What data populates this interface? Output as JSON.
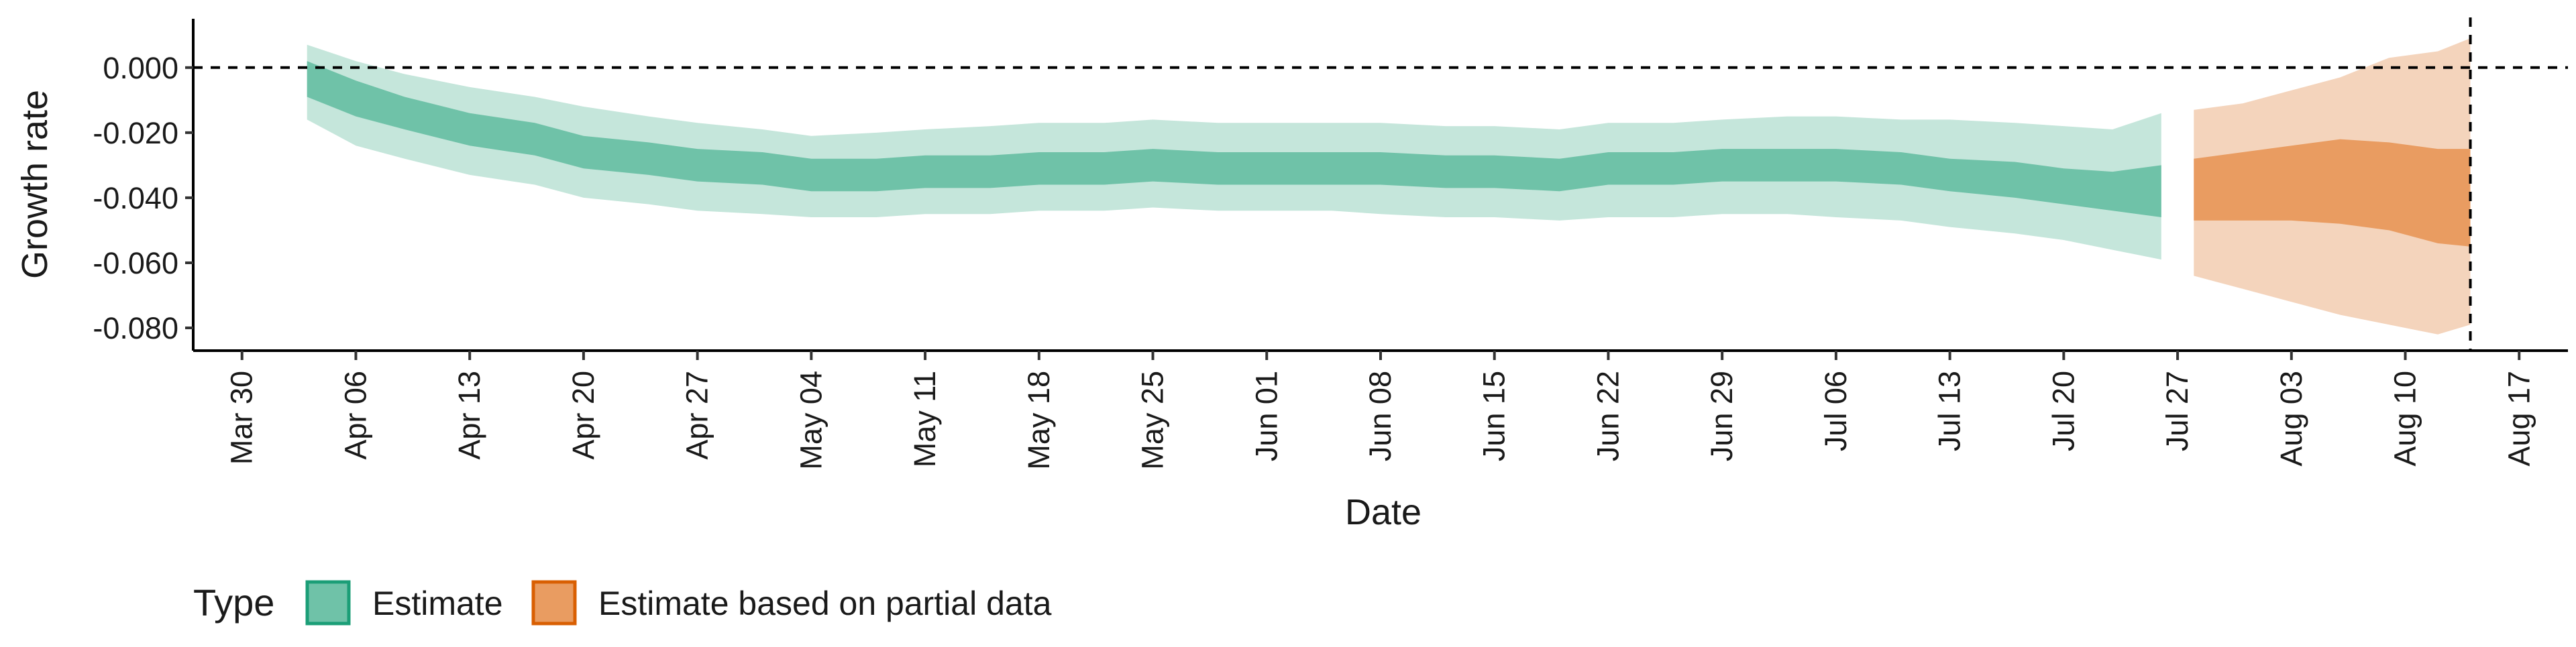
{
  "chart_data": {
    "type": "area",
    "xlabel": "Date",
    "ylabel": "Growth rate",
    "ylim": [
      -0.087,
      0.015
    ],
    "xlim": [
      "2020-03-27",
      "2020-08-20"
    ],
    "x_ticks": [
      "2020-03-30",
      "2020-04-06",
      "2020-04-13",
      "2020-04-20",
      "2020-04-27",
      "2020-05-04",
      "2020-05-11",
      "2020-05-18",
      "2020-05-25",
      "2020-06-01",
      "2020-06-08",
      "2020-06-15",
      "2020-06-22",
      "2020-06-29",
      "2020-07-06",
      "2020-07-13",
      "2020-07-20",
      "2020-07-27",
      "2020-08-03",
      "2020-08-10",
      "2020-08-17"
    ],
    "x_tick_labels": [
      "Mar 30",
      "Apr 06",
      "Apr 13",
      "Apr 20",
      "Apr 27",
      "May 04",
      "May 11",
      "May 18",
      "May 25",
      "Jun 01",
      "Jun 08",
      "Jun 15",
      "Jun 22",
      "Jun 29",
      "Jul 06",
      "Jul 13",
      "Jul 20",
      "Jul 27",
      "Aug 03",
      "Aug 10",
      "Aug 17"
    ],
    "y_ticks": [
      0.0,
      -0.02,
      -0.04,
      -0.06,
      -0.08
    ],
    "y_tick_labels": [
      "0.000",
      "-0.020",
      "-0.040",
      "-0.060",
      "-0.080"
    ],
    "reference_lines": {
      "horizontal_y": 0.0,
      "vertical_x": "2020-08-14",
      "style": "dashed"
    },
    "grid": false,
    "legend": {
      "position": "bottom-left",
      "title": "Type",
      "entries": [
        "Estimate",
        "Estimate based on partial data"
      ]
    },
    "series": [
      {
        "name": "Estimate",
        "color": "#1b9e77",
        "fill": "#6fc2a8",
        "fill_light": "#c5e6db",
        "points": [
          {
            "x": "2020-04-03",
            "median": -0.003,
            "lower50": -0.009,
            "upper50": 0.002,
            "lower90": -0.016,
            "upper90": 0.007
          },
          {
            "x": "2020-04-06",
            "median": -0.009,
            "lower50": -0.015,
            "upper50": -0.004,
            "lower90": -0.024,
            "upper90": 0.002
          },
          {
            "x": "2020-04-09",
            "median": -0.014,
            "lower50": -0.019,
            "upper50": -0.009,
            "lower90": -0.028,
            "upper90": -0.002
          },
          {
            "x": "2020-04-13",
            "median": -0.019,
            "lower50": -0.024,
            "upper50": -0.014,
            "lower90": -0.033,
            "upper90": -0.006
          },
          {
            "x": "2020-04-17",
            "median": -0.022,
            "lower50": -0.027,
            "upper50": -0.017,
            "lower90": -0.036,
            "upper90": -0.009
          },
          {
            "x": "2020-04-20",
            "median": -0.026,
            "lower50": -0.031,
            "upper50": -0.021,
            "lower90": -0.04,
            "upper90": -0.012
          },
          {
            "x": "2020-04-24",
            "median": -0.028,
            "lower50": -0.033,
            "upper50": -0.023,
            "lower90": -0.042,
            "upper90": -0.015
          },
          {
            "x": "2020-04-27",
            "median": -0.03,
            "lower50": -0.035,
            "upper50": -0.025,
            "lower90": -0.044,
            "upper90": -0.017
          },
          {
            "x": "2020-05-01",
            "median": -0.031,
            "lower50": -0.036,
            "upper50": -0.026,
            "lower90": -0.045,
            "upper90": -0.019
          },
          {
            "x": "2020-05-04",
            "median": -0.033,
            "lower50": -0.038,
            "upper50": -0.028,
            "lower90": -0.046,
            "upper90": -0.021
          },
          {
            "x": "2020-05-08",
            "median": -0.033,
            "lower50": -0.038,
            "upper50": -0.028,
            "lower90": -0.046,
            "upper90": -0.02
          },
          {
            "x": "2020-05-11",
            "median": -0.032,
            "lower50": -0.037,
            "upper50": -0.027,
            "lower90": -0.045,
            "upper90": -0.019
          },
          {
            "x": "2020-05-15",
            "median": -0.032,
            "lower50": -0.037,
            "upper50": -0.027,
            "lower90": -0.045,
            "upper90": -0.018
          },
          {
            "x": "2020-05-18",
            "median": -0.031,
            "lower50": -0.036,
            "upper50": -0.026,
            "lower90": -0.044,
            "upper90": -0.017
          },
          {
            "x": "2020-05-22",
            "median": -0.031,
            "lower50": -0.036,
            "upper50": -0.026,
            "lower90": -0.044,
            "upper90": -0.017
          },
          {
            "x": "2020-05-25",
            "median": -0.03,
            "lower50": -0.035,
            "upper50": -0.025,
            "lower90": -0.043,
            "upper90": -0.016
          },
          {
            "x": "2020-05-29",
            "median": -0.031,
            "lower50": -0.036,
            "upper50": -0.026,
            "lower90": -0.044,
            "upper90": -0.017
          },
          {
            "x": "2020-06-01",
            "median": -0.031,
            "lower50": -0.036,
            "upper50": -0.026,
            "lower90": -0.044,
            "upper90": -0.017
          },
          {
            "x": "2020-06-05",
            "median": -0.031,
            "lower50": -0.036,
            "upper50": -0.026,
            "lower90": -0.044,
            "upper90": -0.017
          },
          {
            "x": "2020-06-08",
            "median": -0.031,
            "lower50": -0.036,
            "upper50": -0.026,
            "lower90": -0.045,
            "upper90": -0.017
          },
          {
            "x": "2020-06-12",
            "median": -0.032,
            "lower50": -0.037,
            "upper50": -0.027,
            "lower90": -0.046,
            "upper90": -0.018
          },
          {
            "x": "2020-06-15",
            "median": -0.032,
            "lower50": -0.037,
            "upper50": -0.027,
            "lower90": -0.046,
            "upper90": -0.018
          },
          {
            "x": "2020-06-19",
            "median": -0.033,
            "lower50": -0.038,
            "upper50": -0.028,
            "lower90": -0.047,
            "upper90": -0.019
          },
          {
            "x": "2020-06-22",
            "median": -0.031,
            "lower50": -0.036,
            "upper50": -0.026,
            "lower90": -0.046,
            "upper90": -0.017
          },
          {
            "x": "2020-06-26",
            "median": -0.031,
            "lower50": -0.036,
            "upper50": -0.026,
            "lower90": -0.046,
            "upper90": -0.017
          },
          {
            "x": "2020-06-29",
            "median": -0.03,
            "lower50": -0.035,
            "upper50": -0.025,
            "lower90": -0.045,
            "upper90": -0.016
          },
          {
            "x": "2020-07-03",
            "median": -0.03,
            "lower50": -0.035,
            "upper50": -0.025,
            "lower90": -0.045,
            "upper90": -0.015
          },
          {
            "x": "2020-07-06",
            "median": -0.03,
            "lower50": -0.035,
            "upper50": -0.025,
            "lower90": -0.046,
            "upper90": -0.015
          },
          {
            "x": "2020-07-10",
            "median": -0.031,
            "lower50": -0.036,
            "upper50": -0.026,
            "lower90": -0.047,
            "upper90": -0.016
          },
          {
            "x": "2020-07-13",
            "median": -0.033,
            "lower50": -0.038,
            "upper50": -0.028,
            "lower90": -0.049,
            "upper90": -0.016
          },
          {
            "x": "2020-07-17",
            "median": -0.034,
            "lower50": -0.04,
            "upper50": -0.029,
            "lower90": -0.051,
            "upper90": -0.017
          },
          {
            "x": "2020-07-20",
            "median": -0.036,
            "lower50": -0.042,
            "upper50": -0.031,
            "lower90": -0.053,
            "upper90": -0.018
          },
          {
            "x": "2020-07-23",
            "median": -0.037,
            "lower50": -0.044,
            "upper50": -0.032,
            "lower90": -0.056,
            "upper90": -0.019
          },
          {
            "x": "2020-07-26",
            "median": -0.039,
            "lower50": -0.046,
            "upper50": -0.03,
            "lower90": -0.059,
            "upper90": -0.014
          }
        ]
      },
      {
        "name": "Estimate based on partial data",
        "color": "#d95f02",
        "fill": "#e99c61",
        "fill_light": "#f4d4bc",
        "points": [
          {
            "x": "2020-07-28",
            "median": -0.038,
            "lower50": -0.047,
            "upper50": -0.028,
            "lower90": -0.064,
            "upper90": -0.013
          },
          {
            "x": "2020-07-31",
            "median": -0.037,
            "lower50": -0.047,
            "upper50": -0.026,
            "lower90": -0.068,
            "upper90": -0.011
          },
          {
            "x": "2020-08-03",
            "median": -0.036,
            "lower50": -0.047,
            "upper50": -0.024,
            "lower90": -0.072,
            "upper90": -0.007
          },
          {
            "x": "2020-08-06",
            "median": -0.036,
            "lower50": -0.048,
            "upper50": -0.022,
            "lower90": -0.076,
            "upper90": -0.003
          },
          {
            "x": "2020-08-09",
            "median": -0.037,
            "lower50": -0.05,
            "upper50": -0.023,
            "lower90": -0.079,
            "upper90": 0.003
          },
          {
            "x": "2020-08-12",
            "median": -0.039,
            "lower50": -0.054,
            "upper50": -0.025,
            "lower90": -0.082,
            "upper90": 0.005
          },
          {
            "x": "2020-08-14",
            "median": -0.04,
            "lower50": -0.055,
            "upper50": -0.025,
            "lower90": -0.079,
            "upper90": 0.009
          }
        ]
      }
    ]
  }
}
